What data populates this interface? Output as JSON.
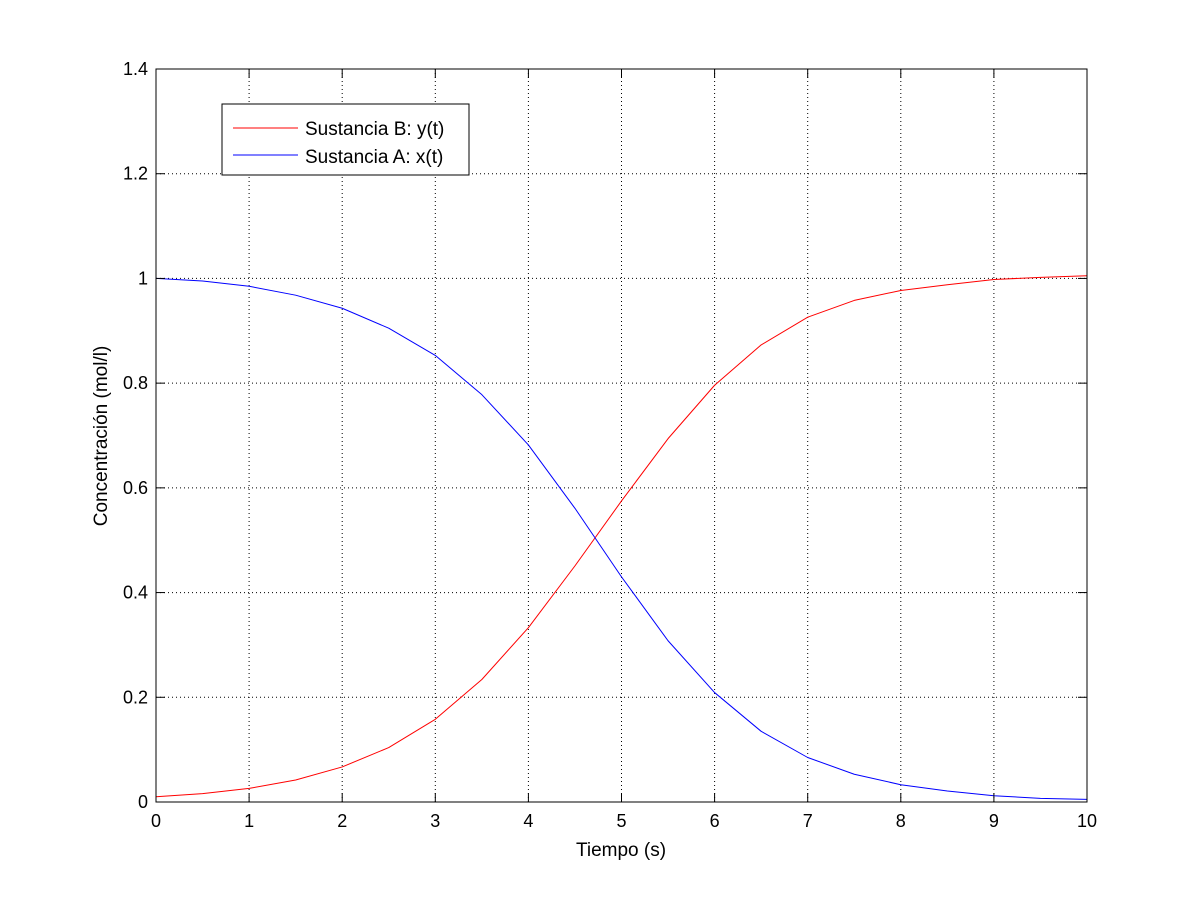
{
  "chart_data": {
    "type": "line",
    "title": "",
    "xlabel": "Tiempo (s)",
    "ylabel": "Concentración (mol/l)",
    "xlim": [
      0,
      10
    ],
    "ylim": [
      0,
      1.4
    ],
    "xticks": [
      0,
      1,
      2,
      3,
      4,
      5,
      6,
      7,
      8,
      9,
      10
    ],
    "xtick_labels": [
      "0",
      "1",
      "2",
      "3",
      "4",
      "5",
      "6",
      "7",
      "8",
      "9",
      "10"
    ],
    "yticks": [
      0,
      0.2,
      0.4,
      0.6,
      0.8,
      1.0,
      1.2,
      1.4
    ],
    "ytick_labels": [
      "0",
      "0.2",
      "0.4",
      "0.6",
      "0.8",
      "1",
      "1.2",
      "1.4"
    ],
    "grid": true,
    "legend_position": "top-left",
    "x": [
      0,
      0.5,
      1,
      1.5,
      2,
      2.5,
      3,
      3.5,
      4,
      4.5,
      5,
      5.5,
      6,
      6.5,
      7,
      7.5,
      8,
      8.5,
      9,
      9.5,
      10
    ],
    "series": [
      {
        "name": "Sustancia B: y(t)",
        "color": "#ff0000",
        "values": [
          0.01,
          0.016,
          0.026,
          0.042,
          0.067,
          0.104,
          0.158,
          0.234,
          0.333,
          0.451,
          0.575,
          0.694,
          0.796,
          0.873,
          0.926,
          0.958,
          0.977,
          0.988,
          0.998,
          1.002,
          1.005
        ]
      },
      {
        "name": "Sustancia A: x(t)",
        "color": "#0000ff",
        "values": [
          1.0,
          0.995,
          0.985,
          0.968,
          0.943,
          0.905,
          0.853,
          0.778,
          0.682,
          0.561,
          0.43,
          0.308,
          0.209,
          0.135,
          0.085,
          0.053,
          0.033,
          0.021,
          0.012,
          0.007,
          0.005
        ]
      }
    ]
  }
}
